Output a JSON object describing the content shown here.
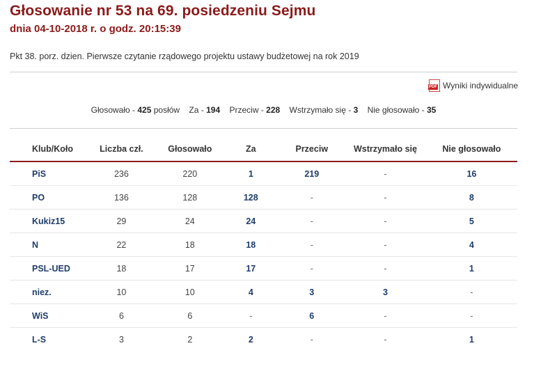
{
  "header": {
    "title": "Głosowanie nr 53 na 69. posiedzeniu Sejmu",
    "date": "dnia 04-10-2018 r. o godz. 20:15:39",
    "subject": "Pkt 38. porz. dzien. Pierwsze czytanie rządowego projektu ustawy budżetowej na rok 2019"
  },
  "pdf_link": {
    "icon": "pdf-icon",
    "icon_text": "PDF",
    "label": "Wyniki indywidualne"
  },
  "summary": {
    "voted_label": "Głosowało -",
    "voted_value": "425",
    "voted_suffix": "posłów",
    "for_label": "Za -",
    "for_value": "194",
    "against_label": "Przeciw -",
    "against_value": "228",
    "abstained_label": "Wstrzymało się -",
    "abstained_value": "3",
    "not_voted_label": "Nie głosowało -",
    "not_voted_value": "35"
  },
  "table": {
    "headers": [
      "Klub/Koło",
      "Liczba czł.",
      "Głosowało",
      "Za",
      "Przeciw",
      "Wstrzymało się",
      "Nie głosowało"
    ],
    "rows": [
      [
        "PiS",
        "236",
        "220",
        "1",
        "219",
        "-",
        "16"
      ],
      [
        "PO",
        "136",
        "128",
        "128",
        "-",
        "-",
        "8"
      ],
      [
        "Kukiz15",
        "29",
        "24",
        "24",
        "-",
        "-",
        "5"
      ],
      [
        "N",
        "22",
        "18",
        "18",
        "-",
        "-",
        "4"
      ],
      [
        "PSL-UED",
        "18",
        "17",
        "17",
        "-",
        "-",
        "1"
      ],
      [
        "niez.",
        "10",
        "10",
        "4",
        "3",
        "3",
        "-"
      ],
      [
        "WiS",
        "6",
        "6",
        "-",
        "6",
        "-",
        "-"
      ],
      [
        "L-S",
        "3",
        "2",
        "2",
        "-",
        "-",
        "1"
      ]
    ]
  },
  "colors": {
    "title": "#8b1a1a",
    "link_blue": "#1f3d6b",
    "rule": "#8b1a1a"
  }
}
